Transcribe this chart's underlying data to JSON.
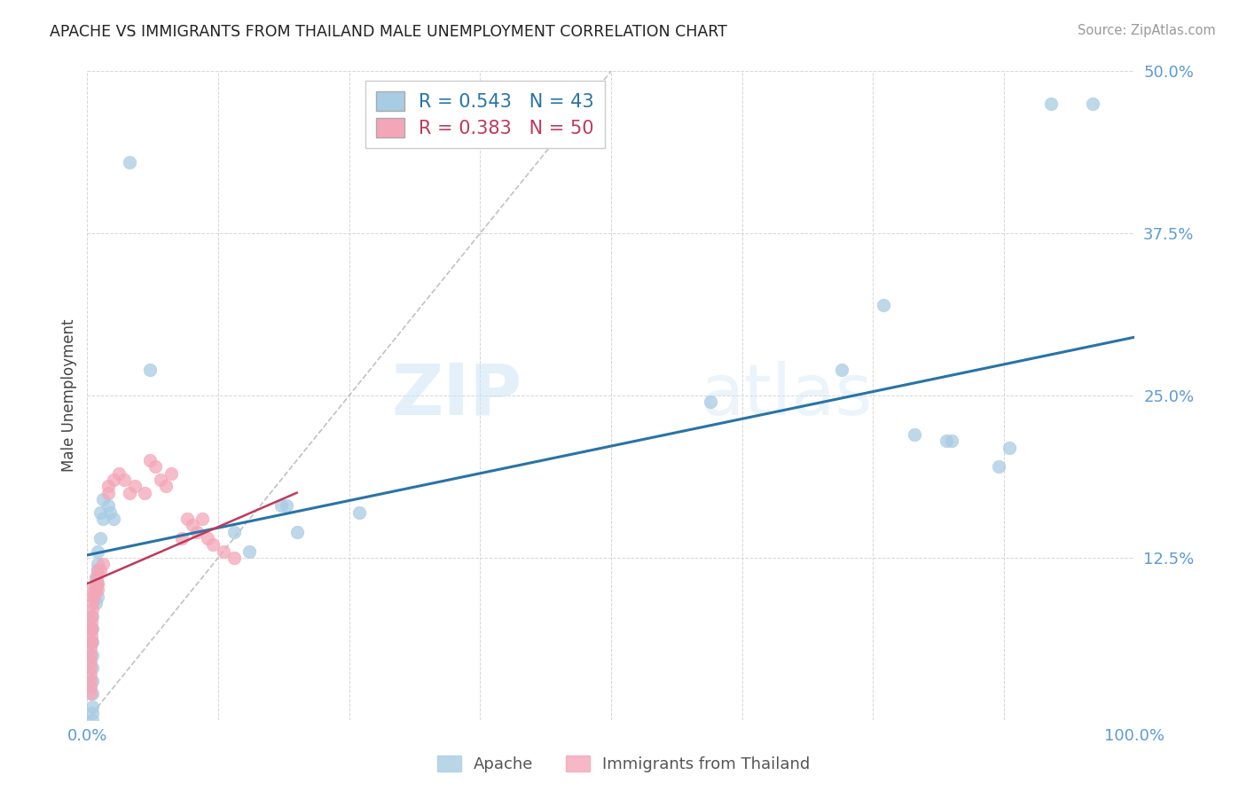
{
  "title": "APACHE VS IMMIGRANTS FROM THAILAND MALE UNEMPLOYMENT CORRELATION CHART",
  "source": "Source: ZipAtlas.com",
  "ylabel": "Male Unemployment",
  "watermark": "ZIPatlas",
  "legend_labels": [
    "Apache",
    "Immigrants from Thailand"
  ],
  "apache_color": "#a8cce4",
  "thailand_color": "#f4a6b8",
  "line_apache_color": "#2874a6",
  "line_thailand_color": "#c0395a",
  "diag_color": "#bbbbbb",
  "background_color": "#ffffff",
  "grid_color": "#cccccc",
  "tick_color": "#5b9bd5",
  "xlim": [
    0.0,
    1.0
  ],
  "ylim": [
    0.0,
    0.5
  ],
  "xticks": [
    0.0,
    0.125,
    0.25,
    0.375,
    0.5,
    0.625,
    0.75,
    0.875,
    1.0
  ],
  "yticks": [
    0.0,
    0.125,
    0.25,
    0.375,
    0.5
  ],
  "xtick_labels": [
    "0.0%",
    "",
    "",
    "",
    "",
    "",
    "",
    "",
    "100.0%"
  ],
  "ytick_labels": [
    "",
    "12.5%",
    "25.0%",
    "37.5%",
    "50.0%"
  ],
  "apache_x": [
    0.005,
    0.005,
    0.005,
    0.005,
    0.005,
    0.005,
    0.005,
    0.005,
    0.005,
    0.005,
    0.008,
    0.008,
    0.008,
    0.01,
    0.01,
    0.01,
    0.01,
    0.01,
    0.012,
    0.012,
    0.015,
    0.015,
    0.02,
    0.022,
    0.025,
    0.04,
    0.06,
    0.14,
    0.155,
    0.185,
    0.19,
    0.2,
    0.26,
    0.595,
    0.72,
    0.76,
    0.79,
    0.82,
    0.825,
    0.87,
    0.88,
    0.92,
    0.96
  ],
  "apache_y": [
    0.08,
    0.07,
    0.06,
    0.05,
    0.04,
    0.03,
    0.02,
    0.01,
    0.005,
    0.0,
    0.11,
    0.1,
    0.09,
    0.13,
    0.12,
    0.115,
    0.105,
    0.095,
    0.16,
    0.14,
    0.17,
    0.155,
    0.165,
    0.16,
    0.155,
    0.43,
    0.27,
    0.145,
    0.13,
    0.165,
    0.165,
    0.145,
    0.16,
    0.245,
    0.27,
    0.32,
    0.22,
    0.215,
    0.215,
    0.195,
    0.21,
    0.475,
    0.475
  ],
  "thailand_x": [
    0.003,
    0.003,
    0.003,
    0.003,
    0.003,
    0.003,
    0.003,
    0.003,
    0.003,
    0.003,
    0.004,
    0.004,
    0.004,
    0.004,
    0.004,
    0.005,
    0.005,
    0.005,
    0.005,
    0.006,
    0.007,
    0.008,
    0.009,
    0.01,
    0.01,
    0.01,
    0.012,
    0.015,
    0.02,
    0.02,
    0.025,
    0.03,
    0.035,
    0.04,
    0.045,
    0.055,
    0.06,
    0.065,
    0.07,
    0.075,
    0.08,
    0.09,
    0.095,
    0.1,
    0.105,
    0.11,
    0.115,
    0.12,
    0.13,
    0.14
  ],
  "thailand_y": [
    0.07,
    0.06,
    0.055,
    0.05,
    0.045,
    0.04,
    0.035,
    0.03,
    0.025,
    0.02,
    0.08,
    0.075,
    0.07,
    0.065,
    0.06,
    0.1,
    0.095,
    0.09,
    0.085,
    0.095,
    0.1,
    0.105,
    0.11,
    0.115,
    0.105,
    0.1,
    0.115,
    0.12,
    0.18,
    0.175,
    0.185,
    0.19,
    0.185,
    0.175,
    0.18,
    0.175,
    0.2,
    0.195,
    0.185,
    0.18,
    0.19,
    0.14,
    0.155,
    0.15,
    0.145,
    0.155,
    0.14,
    0.135,
    0.13,
    0.125
  ],
  "apache_R": 0.543,
  "apache_N": 43,
  "thailand_R": 0.383,
  "thailand_N": 50,
  "apache_line_x": [
    0.0,
    1.0
  ],
  "apache_line_y": [
    0.127,
    0.295
  ],
  "thailand_line_x": [
    0.0,
    0.2
  ],
  "thailand_line_y": [
    0.105,
    0.175
  ]
}
